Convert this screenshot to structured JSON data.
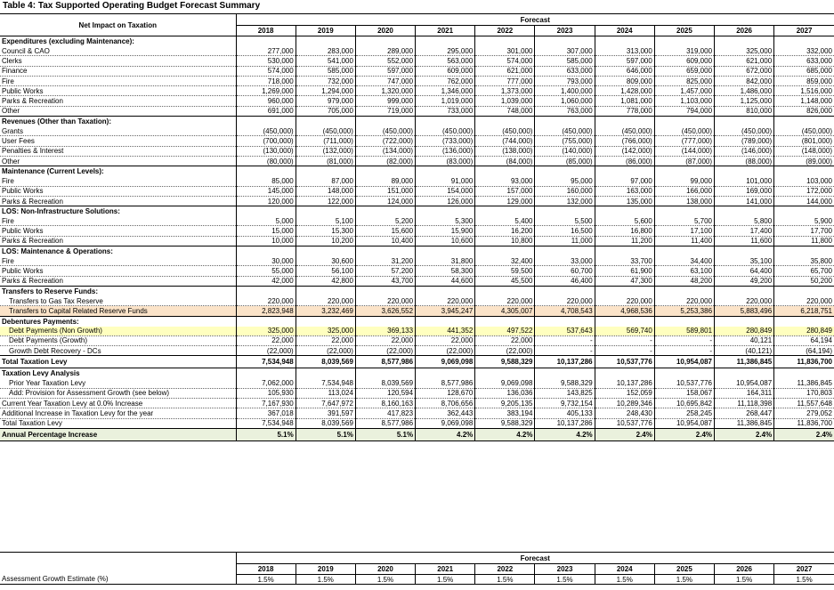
{
  "title": "Table 4: Tax Supported Operating Budget Forecast Summary",
  "header": {
    "label": "Net Impact on Taxation",
    "forecast": "Forecast",
    "years": [
      "2018",
      "2019",
      "2020",
      "2021",
      "2022",
      "2023",
      "2024",
      "2025",
      "2026",
      "2027"
    ]
  },
  "sections": [
    {
      "title": "Expenditures (excluding Maintenance):",
      "rows": [
        {
          "label": "Council & CAO",
          "v": [
            "277,000",
            "283,000",
            "289,000",
            "295,000",
            "301,000",
            "307,000",
            "313,000",
            "319,000",
            "325,000",
            "332,000"
          ]
        },
        {
          "label": "Clerks",
          "v": [
            "530,000",
            "541,000",
            "552,000",
            "563,000",
            "574,000",
            "585,000",
            "597,000",
            "609,000",
            "621,000",
            "633,000"
          ]
        },
        {
          "label": "Finance",
          "v": [
            "574,000",
            "585,000",
            "597,000",
            "609,000",
            "621,000",
            "633,000",
            "646,000",
            "659,000",
            "672,000",
            "685,000"
          ]
        },
        {
          "label": "Fire",
          "v": [
            "718,000",
            "732,000",
            "747,000",
            "762,000",
            "777,000",
            "793,000",
            "809,000",
            "825,000",
            "842,000",
            "859,000"
          ]
        },
        {
          "label": "Public Works",
          "v": [
            "1,269,000",
            "1,294,000",
            "1,320,000",
            "1,346,000",
            "1,373,000",
            "1,400,000",
            "1,428,000",
            "1,457,000",
            "1,486,000",
            "1,516,000"
          ]
        },
        {
          "label": "Parks & Recreation",
          "v": [
            "960,000",
            "979,000",
            "999,000",
            "1,019,000",
            "1,039,000",
            "1,060,000",
            "1,081,000",
            "1,103,000",
            "1,125,000",
            "1,148,000"
          ]
        },
        {
          "label": "Other",
          "v": [
            "691,000",
            "705,000",
            "719,000",
            "733,000",
            "748,000",
            "763,000",
            "778,000",
            "794,000",
            "810,000",
            "826,000"
          ]
        }
      ]
    },
    {
      "title": "Revenues (Other than Taxation):",
      "rows": [
        {
          "label": "Grants",
          "v": [
            "(450,000)",
            "(450,000)",
            "(450,000)",
            "(450,000)",
            "(450,000)",
            "(450,000)",
            "(450,000)",
            "(450,000)",
            "(450,000)",
            "(450,000)"
          ]
        },
        {
          "label": "User Fees",
          "v": [
            "(700,000)",
            "(711,000)",
            "(722,000)",
            "(733,000)",
            "(744,000)",
            "(755,000)",
            "(766,000)",
            "(777,000)",
            "(789,000)",
            "(801,000)"
          ]
        },
        {
          "label": "Penalties & Interest",
          "v": [
            "(130,000)",
            "(132,000)",
            "(134,000)",
            "(136,000)",
            "(138,000)",
            "(140,000)",
            "(142,000)",
            "(144,000)",
            "(146,000)",
            "(148,000)"
          ]
        },
        {
          "label": "Other",
          "v": [
            "(80,000)",
            "(81,000)",
            "(82,000)",
            "(83,000)",
            "(84,000)",
            "(85,000)",
            "(86,000)",
            "(87,000)",
            "(88,000)",
            "(89,000)"
          ]
        }
      ]
    },
    {
      "title": "Maintenance (Current Levels):",
      "rows": [
        {
          "label": "Fire",
          "v": [
            "85,000",
            "87,000",
            "89,000",
            "91,000",
            "93,000",
            "95,000",
            "97,000",
            "99,000",
            "101,000",
            "103,000"
          ]
        },
        {
          "label": "Public Works",
          "v": [
            "145,000",
            "148,000",
            "151,000",
            "154,000",
            "157,000",
            "160,000",
            "163,000",
            "166,000",
            "169,000",
            "172,000"
          ]
        },
        {
          "label": "Parks & Recreation",
          "v": [
            "120,000",
            "122,000",
            "124,000",
            "126,000",
            "129,000",
            "132,000",
            "135,000",
            "138,000",
            "141,000",
            "144,000"
          ]
        }
      ]
    },
    {
      "title": "LOS: Non-Infrastructure Solutions:",
      "rows": [
        {
          "label": "Fire",
          "v": [
            "5,000",
            "5,100",
            "5,200",
            "5,300",
            "5,400",
            "5,500",
            "5,600",
            "5,700",
            "5,800",
            "5,900"
          ]
        },
        {
          "label": "Public Works",
          "v": [
            "15,000",
            "15,300",
            "15,600",
            "15,900",
            "16,200",
            "16,500",
            "16,800",
            "17,100",
            "17,400",
            "17,700"
          ]
        },
        {
          "label": "Parks & Recreation",
          "v": [
            "10,000",
            "10,200",
            "10,400",
            "10,600",
            "10,800",
            "11,000",
            "11,200",
            "11,400",
            "11,600",
            "11,800"
          ]
        }
      ]
    },
    {
      "title": "LOS: Maintenance & Operations:",
      "rows": [
        {
          "label": "Fire",
          "v": [
            "30,000",
            "30,600",
            "31,200",
            "31,800",
            "32,400",
            "33,000",
            "33,700",
            "34,400",
            "35,100",
            "35,800"
          ]
        },
        {
          "label": "Public Works",
          "v": [
            "55,000",
            "56,100",
            "57,200",
            "58,300",
            "59,500",
            "60,700",
            "61,900",
            "63,100",
            "64,400",
            "65,700"
          ]
        },
        {
          "label": "Parks & Recreation",
          "v": [
            "42,000",
            "42,800",
            "43,700",
            "44,600",
            "45,500",
            "46,400",
            "47,300",
            "48,200",
            "49,200",
            "50,200"
          ]
        }
      ]
    }
  ],
  "transfers": {
    "title": "Transfers to Reserve Funds:",
    "rows": [
      {
        "label": "Transfers to Gas Tax Reserve",
        "v": [
          "220,000",
          "220,000",
          "220,000",
          "220,000",
          "220,000",
          "220,000",
          "220,000",
          "220,000",
          "220,000",
          "220,000"
        ]
      },
      {
        "label": "Transfers to Capital Related Reserve Funds",
        "v": [
          "2,823,948",
          "3,232,469",
          "3,626,552",
          "3,945,247",
          "4,305,007",
          "4,708,543",
          "4,968,536",
          "5,253,386",
          "5,883,496",
          "6,218,751"
        ]
      }
    ]
  },
  "debentures": {
    "title": "Debentures Payments:",
    "rows": [
      {
        "label": "Debt Payments (Non Growth)",
        "v": [
          "325,000",
          "325,000",
          "369,133",
          "441,352",
          "497,522",
          "537,643",
          "569,740",
          "589,801",
          "280,849",
          "280,849"
        ]
      },
      {
        "label": "Debt Payments (Growth)",
        "v": [
          "22,000",
          "22,000",
          "22,000",
          "22,000",
          "22,000",
          "-",
          "-",
          "-",
          "40,121",
          "64,194"
        ]
      },
      {
        "label": "Growth Debt Recovery - DCs",
        "v": [
          "(22,000)",
          "(22,000)",
          "(22,000)",
          "(22,000)",
          "(22,000)",
          "-",
          "-",
          "-",
          "(40,121)",
          "(64,194)"
        ]
      }
    ]
  },
  "total_levy": {
    "label": "Total Taxation Levy",
    "v": [
      "7,534,948",
      "8,039,569",
      "8,577,986",
      "9,069,098",
      "9,588,329",
      "10,137,286",
      "10,537,776",
      "10,954,087",
      "11,386,845",
      "11,836,700"
    ]
  },
  "analysis": {
    "title": "Taxation Levy Analysis",
    "rows": [
      {
        "label": "Prior Year Taxation Levy",
        "indent": true,
        "v": [
          "7,062,000",
          "7,534,948",
          "8,039,569",
          "8,577,986",
          "9,069,098",
          "9,588,329",
          "10,137,286",
          "10,537,776",
          "10,954,087",
          "11,386,845"
        ]
      },
      {
        "label": "Add: Provision for Assessment Growth (see below)",
        "indent": true,
        "v": [
          "105,930",
          "113,024",
          "120,594",
          "128,670",
          "136,036",
          "143,825",
          "152,059",
          "158,067",
          "164,311",
          "170,803"
        ]
      },
      {
        "label": "Current Year Taxation Levy at 0.0% Increase",
        "v": [
          "7,167,930",
          "7,647,972",
          "8,160,163",
          "8,706,656",
          "9,205,135",
          "9,732,154",
          "10,289,346",
          "10,695,842",
          "11,118,398",
          "11,557,648"
        ]
      },
      {
        "label": "Additional Increase in Taxation Levy for the year",
        "v": [
          "367,018",
          "391,597",
          "417,823",
          "362,443",
          "383,194",
          "405,133",
          "248,430",
          "258,245",
          "268,447",
          "279,052"
        ]
      },
      {
        "label": "Total Taxation Levy",
        "v": [
          "7,534,948",
          "8,039,569",
          "8,577,986",
          "9,069,098",
          "9,588,329",
          "10,137,286",
          "10,537,776",
          "10,954,087",
          "11,386,845",
          "11,836,700"
        ]
      }
    ]
  },
  "annual_increase": {
    "label": "Annual Percentage Increase",
    "v": [
      "5.1%",
      "5.1%",
      "5.1%",
      "4.2%",
      "4.2%",
      "4.2%",
      "2.4%",
      "2.4%",
      "2.4%",
      "2.4%"
    ]
  },
  "growth": {
    "forecast": "Forecast",
    "years": [
      "2018",
      "2019",
      "2020",
      "2021",
      "2022",
      "2023",
      "2024",
      "2025",
      "2026",
      "2027"
    ],
    "label": "Assessment Growth Estimate (%)",
    "v": [
      "1.5%",
      "1.5%",
      "1.5%",
      "1.5%",
      "1.5%",
      "1.5%",
      "1.5%",
      "1.5%",
      "1.5%",
      "1.5%"
    ]
  }
}
